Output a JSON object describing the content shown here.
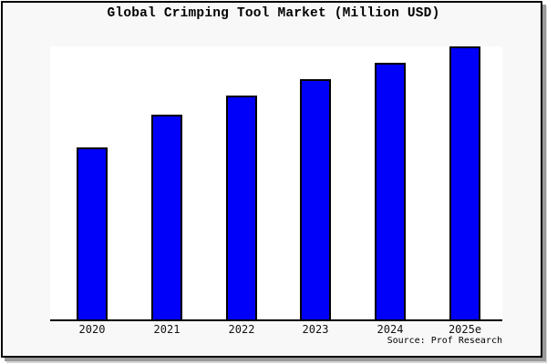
{
  "title": "Global Crimping Tool Market (Million USD)",
  "source": "Source: Prof Research",
  "colors": {
    "bar_fill": "#0000fa",
    "bar_border": "#000000",
    "frame_border": "#000000",
    "canvas_background": "#f8f8f8",
    "plot_background": "#ffffff",
    "shadow": "#9a9a9a"
  },
  "chart_data": {
    "type": "bar",
    "title": "Global Crimping Tool Market (Million USD)",
    "categories": [
      "2020",
      "2021",
      "2022",
      "2023",
      "2024",
      "2025e"
    ],
    "values": [
      63,
      75,
      82,
      88,
      94,
      100
    ],
    "values_note": "y-axis unlabeled; values are relative index estimated from bar heights with 2025e = 100",
    "xlabel": "",
    "ylabel": "",
    "ylim": [
      0,
      100
    ],
    "grid": false,
    "legend": false,
    "y_axis_visible": false,
    "x_axis_line": true,
    "annotations": [
      "Source: Prof Research"
    ]
  }
}
